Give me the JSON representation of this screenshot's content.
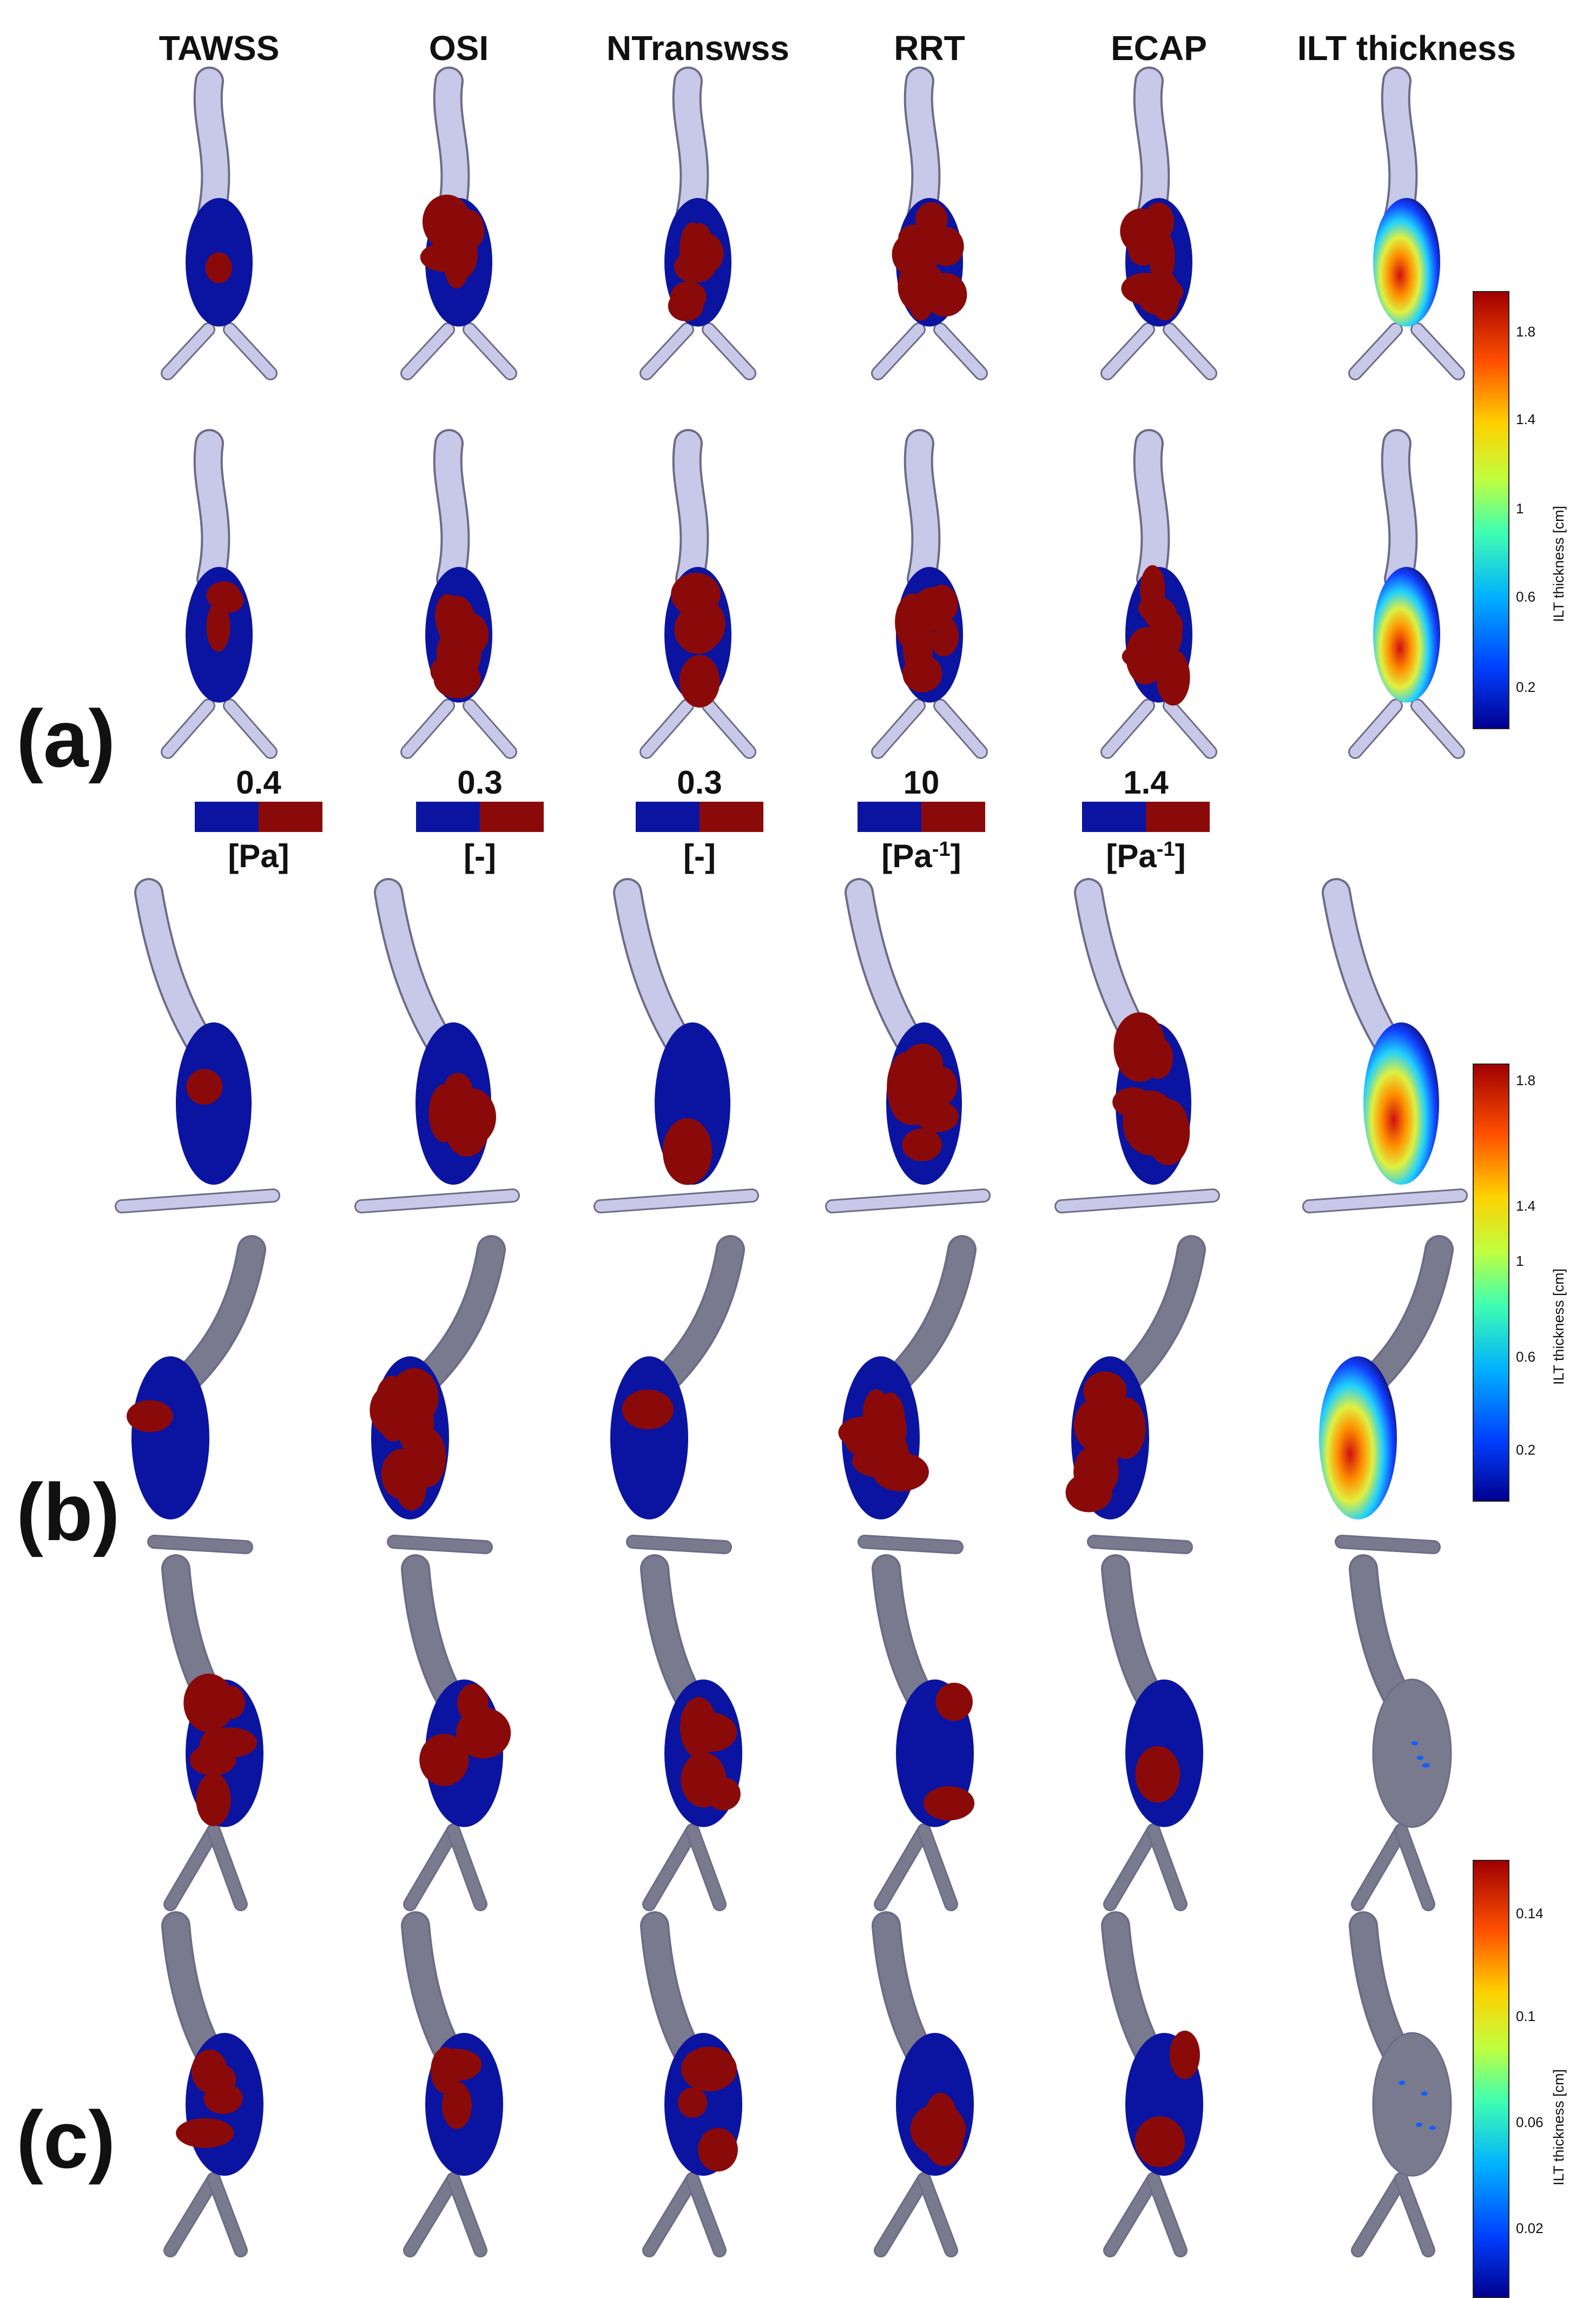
{
  "columns": [
    "TAWSS",
    "OSI",
    "NTranswss",
    "RRT",
    "ECAP",
    "ILT thickness"
  ],
  "panels": [
    "(a)",
    "(b)",
    "(c)"
  ],
  "thresholds": [
    {
      "metric": "TAWSS",
      "value": "0.4",
      "unit": "[Pa]",
      "unit_sup": ""
    },
    {
      "metric": "OSI",
      "value": "0.3",
      "unit": "[-]",
      "unit_sup": ""
    },
    {
      "metric": "NTranswss",
      "value": "0.3",
      "unit": "[-]",
      "unit_sup": ""
    },
    {
      "metric": "RRT",
      "value": "10",
      "unit": "[Pa",
      "unit_sup": "-1",
      "unit_tail": "]"
    },
    {
      "metric": "ECAP",
      "value": "1.4",
      "unit": "[Pa",
      "unit_sup": "-1",
      "unit_tail": "]"
    }
  ],
  "colorbars": [
    {
      "panel": "(a)",
      "title": "ILT thickness [cm]",
      "ticks": [
        "1.8",
        "1.4",
        "1",
        "0.6",
        "0.2"
      ]
    },
    {
      "panel": "(b)",
      "title": "ILT thickness [cm]",
      "ticks": [
        "1.8",
        "1.4",
        "1",
        "0.6",
        "0.2"
      ]
    },
    {
      "panel": "(c)",
      "title": "ILT thickness [cm]",
      "ticks": [
        "0.14",
        "0.1",
        "0.06",
        "0.02"
      ]
    }
  ],
  "colors": {
    "low": "#0b14a0",
    "high": "#8a0a0a",
    "vessel_light": "#c8c8e8",
    "vessel_dark": "#7a7a8e"
  }
}
